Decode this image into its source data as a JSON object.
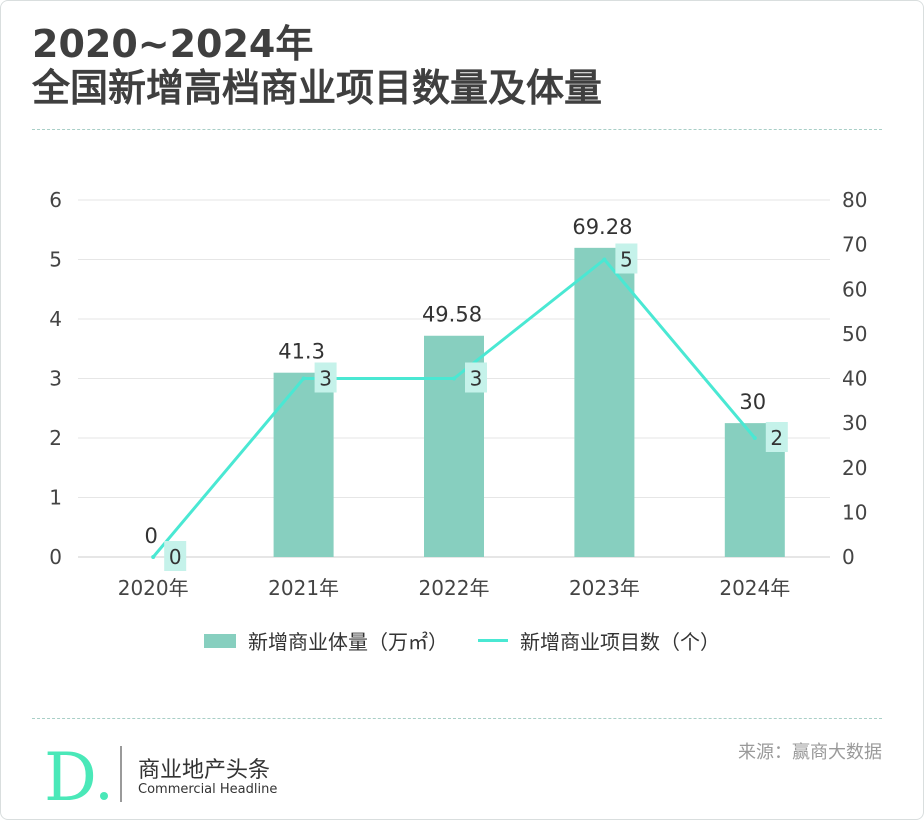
{
  "title": {
    "line1": "2020~2024年",
    "line2": "全国新增高档商业项目数量及体量"
  },
  "colors": {
    "bar": "#87cfbf",
    "line": "#4ae8d3",
    "title": "#3f3f3f",
    "grid": "#e6e6e6",
    "label_bg": "#c5f2ea"
  },
  "chart_data": {
    "type": "bar+line",
    "categories": [
      "2020年",
      "2021年",
      "2022年",
      "2023年",
      "2024年"
    ],
    "series": [
      {
        "name": "新增商业体量（万㎡）",
        "type": "bar",
        "axis": "right",
        "values": [
          0,
          41.3,
          49.58,
          69.28,
          30
        ],
        "labels": [
          "0",
          "41.3",
          "49.58",
          "69.28",
          "30"
        ]
      },
      {
        "name": "新增商业项目数（个）",
        "type": "line",
        "axis": "left",
        "values": [
          0,
          3,
          3,
          5,
          2
        ],
        "labels": [
          "0",
          "3",
          "3",
          "5",
          "2"
        ]
      }
    ],
    "y_left": {
      "min": 0,
      "max": 6,
      "ticks": [
        "0",
        "1",
        "2",
        "3",
        "4",
        "5",
        "6"
      ]
    },
    "y_right": {
      "min": 0,
      "max": 80,
      "ticks": [
        "0",
        "10",
        "20",
        "30",
        "40",
        "50",
        "60",
        "70",
        "80"
      ]
    },
    "grid": true,
    "legend_position": "bottom"
  },
  "legend": {
    "bar_label": "新增商业体量（万㎡）",
    "line_label": "新增商业项目数（个）"
  },
  "source": "来源：赢商大数据",
  "brand": {
    "name_cn": "商业地产头条",
    "name_en": "Commercial Headline",
    "logo_letter": "D"
  }
}
